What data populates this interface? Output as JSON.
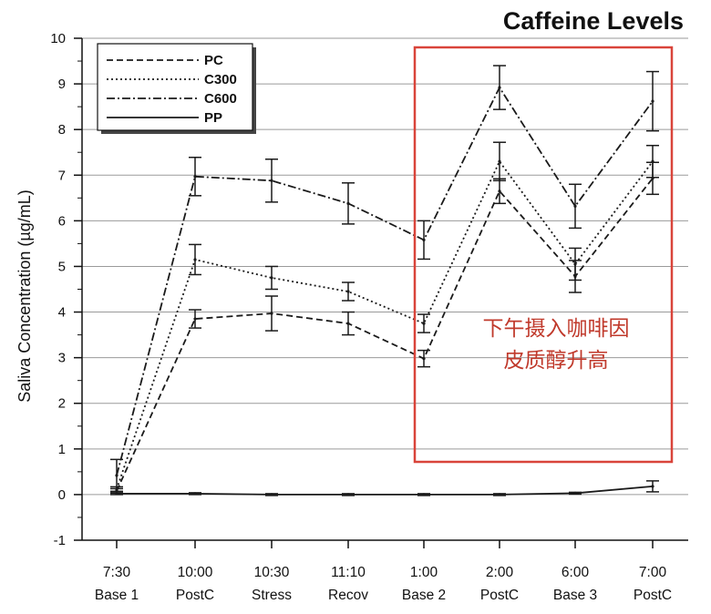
{
  "chart_data": {
    "type": "line",
    "title": "Caffeine Levels",
    "ylabel": "Saliva Concentration (µg/mL)",
    "xlabel": "",
    "ylim": [
      -1,
      10
    ],
    "yticks": [
      "-1",
      "0",
      "1",
      "2",
      "3",
      "4",
      "5",
      "6",
      "7",
      "8",
      "9",
      "10"
    ],
    "grid": "horizontal",
    "legend_placement": "top-left",
    "categories": [
      {
        "time": "7:30",
        "phase": "Base 1"
      },
      {
        "time": "10:00",
        "phase": "PostC"
      },
      {
        "time": "10:30",
        "phase": "Stress"
      },
      {
        "time": "11:10",
        "phase": "Recov"
      },
      {
        "time": "1:00",
        "phase": "Base 2"
      },
      {
        "time": "2:00",
        "phase": "PostC"
      },
      {
        "time": "6:00",
        "phase": "Base 3"
      },
      {
        "time": "7:00",
        "phase": "PostC"
      }
    ],
    "series": [
      {
        "name": "PC",
        "style": "dashed",
        "values": [
          0.08,
          3.85,
          3.97,
          3.75,
          2.98,
          6.65,
          4.78,
          6.93
        ],
        "errors": [
          0.05,
          0.2,
          0.38,
          0.25,
          0.18,
          0.27,
          0.35,
          0.35
        ]
      },
      {
        "name": "C300",
        "style": "dotted",
        "values": [
          0.12,
          5.15,
          4.75,
          4.45,
          3.75,
          7.3,
          5.05,
          7.3
        ],
        "errors": [
          0.05,
          0.33,
          0.25,
          0.2,
          0.2,
          0.42,
          0.35,
          0.35
        ]
      },
      {
        "name": "C600",
        "style": "dashdot",
        "values": [
          0.42,
          6.97,
          6.88,
          6.38,
          5.58,
          8.92,
          6.32,
          8.62
        ],
        "errors": [
          0.35,
          0.42,
          0.47,
          0.45,
          0.42,
          0.48,
          0.48,
          0.65
        ]
      },
      {
        "name": "PP",
        "style": "solid",
        "values": [
          0.02,
          0.02,
          0.0,
          0.0,
          0.0,
          0.0,
          0.03,
          0.18
        ],
        "errors": [
          0.02,
          0.02,
          0.02,
          0.02,
          0.02,
          0.02,
          0.02,
          0.12
        ]
      }
    ],
    "annotation": {
      "line1": "下午摄入咖啡因",
      "line2": "皮质醇升高",
      "box_color": "#d9443a",
      "text_color": "#c0392b"
    }
  }
}
